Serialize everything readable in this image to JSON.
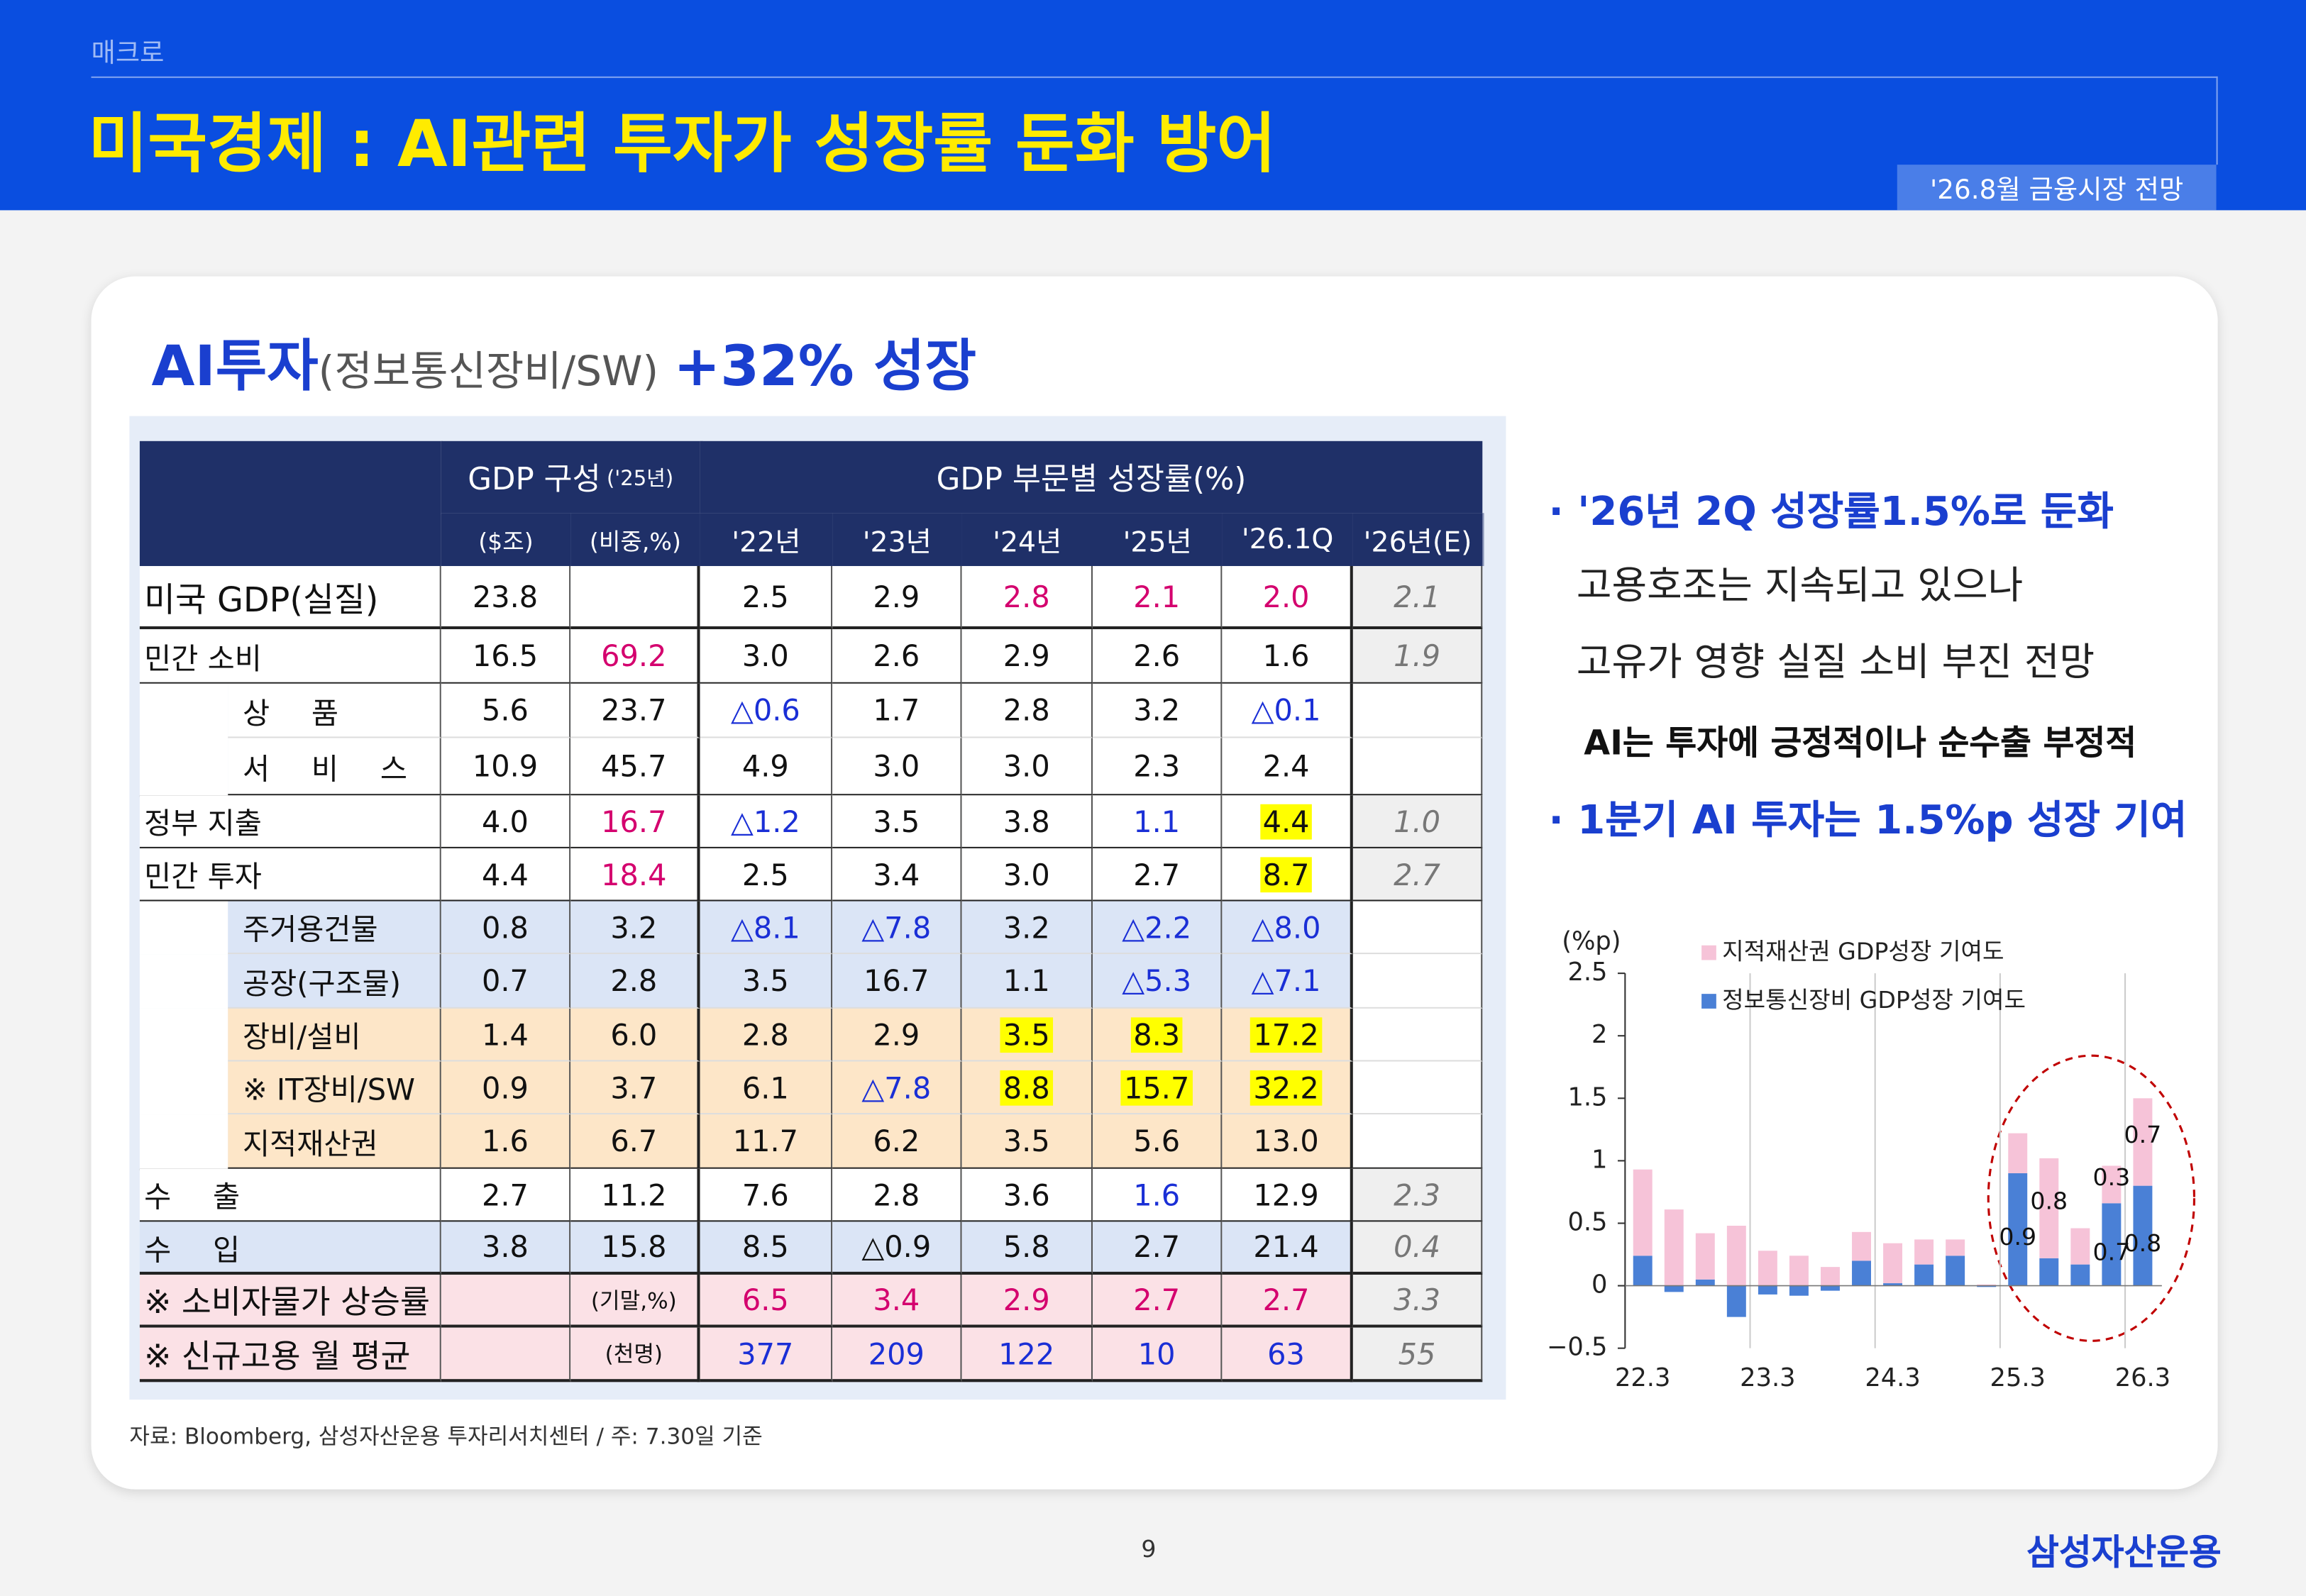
{
  "header": {
    "category": "매크로",
    "title": "미국경제 : AI관련 투자가 성장률 둔화 방어",
    "tag": "'26.8월 금융시장 전망"
  },
  "section": {
    "title": "AI투자",
    "subtitle": "(정보통신장비/SW)",
    "highlight": "+32% 성장"
  },
  "table": {
    "header_top": [
      "GDP 구성",
      "('25년)",
      "GDP 부문별 성장률(%)"
    ],
    "header_sub": [
      "($조)",
      "(비중,%)",
      "'22년",
      "'23년",
      "'24년",
      "'25년",
      "'26.1Q",
      "'26년(E)"
    ],
    "rows": [
      [
        "미국 GDP(실질)",
        "23.8",
        null,
        "2.5",
        "2.9",
        "2.8",
        "2.1",
        "2.0",
        "2.1"
      ],
      [
        "민간 소비",
        "16.5",
        "69.2",
        "3.0",
        "2.6",
        "2.9",
        "2.6",
        "1.6",
        "1.9"
      ],
      [
        "상 품",
        "5.6",
        "23.7",
        "△0.6",
        "1.7",
        "2.8",
        "3.2",
        "△0.1",
        null
      ],
      [
        "서 비 스",
        "10.9",
        "45.7",
        "4.9",
        "3.0",
        "3.0",
        "2.3",
        "2.4",
        null
      ],
      [
        "정부 지출",
        "4.0",
        "16.7",
        "△1.2",
        "3.5",
        "3.8",
        "1.1",
        "4.4",
        "1.0"
      ],
      [
        "민간 투자",
        "4.4",
        "18.4",
        "2.5",
        "3.4",
        "3.0",
        "2.7",
        "8.7",
        "2.7"
      ],
      [
        "주거용건물",
        "0.8",
        "3.2",
        "△8.1",
        "△7.8",
        "3.2",
        "△2.2",
        "△8.0",
        null
      ],
      [
        "공장(구조물)",
        "0.7",
        "2.8",
        "3.5",
        "16.7",
        "1.1",
        "△5.3",
        "△7.1",
        null
      ],
      [
        "장비/설비",
        "1.4",
        "6.0",
        "2.8",
        "2.9",
        "3.5",
        "8.3",
        "17.2",
        null
      ],
      [
        "※ IT장비/SW",
        "0.9",
        "3.7",
        "6.1",
        "△7.8",
        "8.8",
        "15.7",
        "32.2",
        null
      ],
      [
        "지적재산권",
        "1.6",
        "6.7",
        "11.7",
        "6.2",
        "3.5",
        "5.6",
        "13.0",
        null
      ],
      [
        "수 출",
        "2.7",
        "11.2",
        "7.6",
        "2.8",
        "3.6",
        "1.6",
        "12.9",
        "2.3"
      ],
      [
        "수 입",
        "3.8",
        "15.8",
        "8.5",
        "△0.9",
        "5.8",
        "2.7",
        "21.4",
        "0.4"
      ],
      [
        "※ 소비자물가 상승률",
        null,
        "(기말,%)",
        "6.5",
        "3.4",
        "2.9",
        "2.7",
        "2.7",
        "3.3"
      ],
      [
        "※ 신규고용 월 평균",
        null,
        "(천명)",
        "377",
        "209",
        "122",
        "10",
        "63",
        "55"
      ]
    ]
  },
  "bullets": [
    "· '26년 2Q 성장률1.5%로 둔화",
    "고용호조는 지속되고 있으나",
    "고유가 영향 실질 소비 부진 전망",
    "AI는 투자에 긍정적이나 순수출 부정적",
    "· 1분기 AI 투자는 1.5%p 성장 기여"
  ],
  "chart_data": {
    "type": "stacked_bar",
    "y_label": "(%p)",
    "categories": [
      "22.3",
      null,
      null,
      null,
      "23.3",
      null,
      null,
      null,
      "24.3",
      null,
      null,
      null,
      "25.3",
      null,
      null,
      null,
      "26.3"
    ],
    "series": [
      {
        "name": "지적재산권 GDP성장 기여도",
        "color": "#f6c3d8",
        "values": [
          0.69,
          0.61,
          0.37,
          0.48,
          0.28,
          0.24,
          0.15,
          0.23,
          0.32,
          0.2,
          0.13,
          0.01,
          0.32,
          0.8,
          0.29,
          0.3,
          0.7
        ],
        "value_labels": [
          null,
          null,
          null,
          null,
          null,
          null,
          null,
          null,
          null,
          null,
          null,
          null,
          null,
          "0.8",
          null,
          "0.3",
          "0.7"
        ]
      },
      {
        "name": "정보통신장비 GDP성장 기여도",
        "color": "#4a80d6",
        "values": [
          0.24,
          -0.05,
          0.05,
          -0.25,
          -0.07,
          -0.08,
          -0.04,
          0.2,
          0.02,
          0.17,
          0.24,
          -0.01,
          0.9,
          0.22,
          0.17,
          0.66,
          0.8
        ],
        "value_labels": [
          null,
          null,
          null,
          null,
          null,
          null,
          null,
          null,
          null,
          null,
          null,
          null,
          "0.9",
          null,
          null,
          "0.7",
          "0.8"
        ]
      }
    ],
    "ylim": [
      -0.5,
      2.5
    ],
    "yticks": [
      {
        "value": -0.5,
        "label": "−0.5"
      },
      0,
      0.5,
      1,
      1.5,
      2,
      2.5
    ]
  },
  "source": "자료: Bloomberg, 삼성자산운용 투자리서치센터 / 주: 7.30일 기준",
  "page_number": "9",
  "logo": "삼성자산운용"
}
